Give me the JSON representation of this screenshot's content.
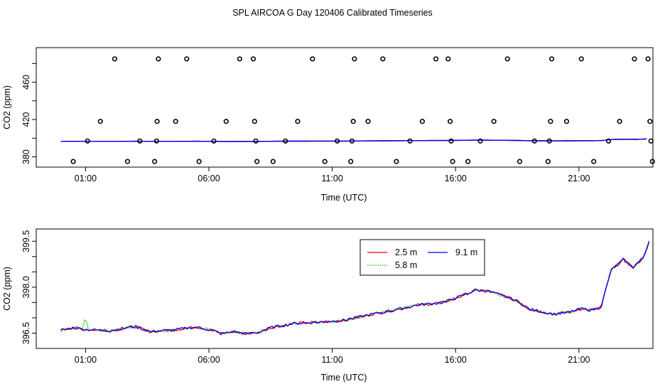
{
  "figure": {
    "title": "SPL AIRCOA G  Day 120406  Calibrated Timeseries"
  },
  "chart_data": [
    {
      "type": "scatter",
      "xlabel": "Time (UTC)",
      "ylabel": "CO2 (ppm)",
      "x_unit": "hours UTC",
      "xlim": [
        -1.0,
        24.0
      ],
      "ylim": [
        369,
        497
      ],
      "x_ticks": [
        1,
        6,
        11,
        16,
        21
      ],
      "x_tick_labels": [
        "01:00",
        "06:00",
        "11:00",
        "16:00",
        "21:00"
      ],
      "y_ticks": [
        380,
        420,
        460
      ],
      "y_tick_labels": [
        "380",
        "420",
        "460"
      ],
      "grid": false,
      "series": [
        {
          "style": "open circles",
          "color": "#000000",
          "points": [
            [
              0.5,
              375
            ],
            [
              1.08,
              397
            ],
            [
              1.6,
              418
            ],
            [
              2.18,
              485
            ],
            [
              2.7,
              375
            ],
            [
              3.2,
              397
            ],
            [
              3.8,
              375
            ],
            [
              3.88,
              397
            ],
            [
              3.9,
              418
            ],
            [
              3.95,
              485
            ],
            [
              4.65,
              418
            ],
            [
              5.1,
              485
            ],
            [
              5.6,
              375
            ],
            [
              6.2,
              397
            ],
            [
              6.7,
              418
            ],
            [
              7.25,
              485
            ],
            [
              7.8,
              485
            ],
            [
              7.85,
              418
            ],
            [
              7.9,
              397
            ],
            [
              7.95,
              375
            ],
            [
              8.6,
              375
            ],
            [
              9.1,
              397
            ],
            [
              9.6,
              418
            ],
            [
              10.2,
              485
            ],
            [
              10.7,
              375
            ],
            [
              11.2,
              397
            ],
            [
              11.75,
              375
            ],
            [
              11.8,
              397
            ],
            [
              11.85,
              418
            ],
            [
              11.9,
              485
            ],
            [
              12.45,
              418
            ],
            [
              13.05,
              485
            ],
            [
              13.6,
              375
            ],
            [
              14.15,
              397
            ],
            [
              14.65,
              418
            ],
            [
              15.2,
              485
            ],
            [
              15.7,
              485
            ],
            [
              15.78,
              418
            ],
            [
              15.82,
              397
            ],
            [
              15.88,
              375
            ],
            [
              16.5,
              375
            ],
            [
              17.0,
              397
            ],
            [
              17.55,
              418
            ],
            [
              18.1,
              485
            ],
            [
              18.6,
              375
            ],
            [
              19.2,
              397
            ],
            [
              19.75,
              375
            ],
            [
              19.8,
              397
            ],
            [
              19.85,
              418
            ],
            [
              19.9,
              485
            ],
            [
              20.5,
              418
            ],
            [
              21.1,
              485
            ],
            [
              21.6,
              375
            ],
            [
              22.2,
              397
            ],
            [
              22.65,
              418
            ],
            [
              23.25,
              485
            ],
            [
              23.8,
              485
            ],
            [
              23.88,
              418
            ],
            [
              23.92,
              397
            ],
            [
              23.98,
              375
            ]
          ]
        },
        {
          "name": "2.5 m",
          "style": "line",
          "color": "#ff0000"
        },
        {
          "name": "5.8 m",
          "style": "line",
          "color": "#00cc00"
        },
        {
          "name": "9.1 m",
          "style": "line",
          "color": "#0000ff"
        }
      ]
    },
    {
      "type": "line",
      "xlabel": "Time (UTC)",
      "ylabel": "CO2 (ppm)",
      "x_unit": "hours UTC",
      "xlim": [
        -1.0,
        24.0
      ],
      "ylim": [
        396.0,
        399.9
      ],
      "x_ticks": [
        1,
        6,
        11,
        16,
        21
      ],
      "x_tick_labels": [
        "01:00",
        "06:00",
        "11:00",
        "16:00",
        "21:00"
      ],
      "y_ticks": [
        396.5,
        397.0,
        397.5,
        398.0,
        398.5,
        399.0,
        399.5
      ],
      "y_tick_labels": [
        "396.5",
        "",
        "",
        "398.0",
        "",
        "",
        "399.5"
      ],
      "grid": false,
      "legend": {
        "placement": "top-center",
        "entries": [
          {
            "name": "2.5 m",
            "color": "#ff0000",
            "dash": "solid"
          },
          {
            "name": "5.8 m",
            "color": "#00cc00",
            "dash": "dotted"
          },
          {
            "name": "9.1 m",
            "color": "#0000ff",
            "dash": "solid"
          }
        ]
      },
      "series_anchor_points": [
        [
          0.0,
          396.6
        ],
        [
          0.5,
          396.68
        ],
        [
          1.0,
          396.62
        ],
        [
          2.0,
          396.58
        ],
        [
          3.0,
          396.72
        ],
        [
          3.6,
          396.55
        ],
        [
          4.5,
          396.6
        ],
        [
          5.5,
          396.7
        ],
        [
          6.2,
          396.58
        ],
        [
          6.5,
          396.48
        ],
        [
          7.0,
          396.55
        ],
        [
          7.5,
          396.48
        ],
        [
          8.0,
          396.52
        ],
        [
          8.5,
          396.68
        ],
        [
          9.5,
          396.82
        ],
        [
          10.5,
          396.86
        ],
        [
          11.5,
          396.92
        ],
        [
          12.5,
          397.1
        ],
        [
          13.5,
          397.25
        ],
        [
          14.5,
          397.42
        ],
        [
          15.5,
          397.5
        ],
        [
          16.2,
          397.7
        ],
        [
          16.8,
          397.9
        ],
        [
          17.3,
          397.88
        ],
        [
          18.0,
          397.7
        ],
        [
          18.5,
          397.55
        ],
        [
          19.0,
          397.28
        ],
        [
          20.0,
          397.12
        ],
        [
          20.6,
          397.18
        ],
        [
          21.1,
          397.3
        ],
        [
          21.5,
          397.25
        ],
        [
          21.9,
          397.35
        ],
        [
          22.3,
          398.55
        ],
        [
          22.8,
          398.9
        ],
        [
          23.2,
          398.65
        ],
        [
          23.6,
          398.95
        ],
        [
          23.85,
          399.5
        ]
      ]
    }
  ]
}
